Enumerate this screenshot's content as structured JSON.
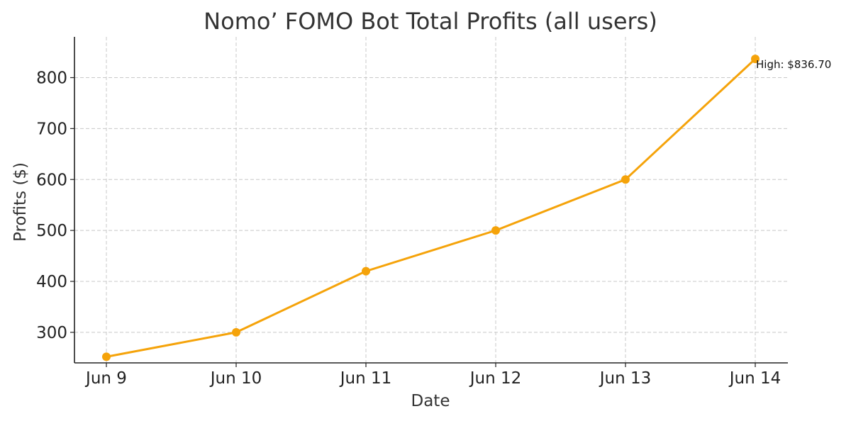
{
  "chart_data": {
    "type": "line",
    "title": "Nomo’ FOMO Bot Total Profits (all users)",
    "xlabel": "Date",
    "ylabel": "Profits ($)",
    "categories": [
      "Jun 9",
      "Jun 10",
      "Jun 11",
      "Jun 12",
      "Jun 13",
      "Jun 14"
    ],
    "series": [
      {
        "values": [
          252,
          300,
          420,
          500,
          600,
          836.7
        ],
        "color": "#f5a30a"
      }
    ],
    "ylim": [
      240,
      880
    ],
    "yticks": [
      300,
      400,
      500,
      600,
      700,
      800
    ],
    "grid": true,
    "annotations": [
      {
        "text": "High: $836.70",
        "category": "Jun 14",
        "value": 836.7
      }
    ]
  }
}
